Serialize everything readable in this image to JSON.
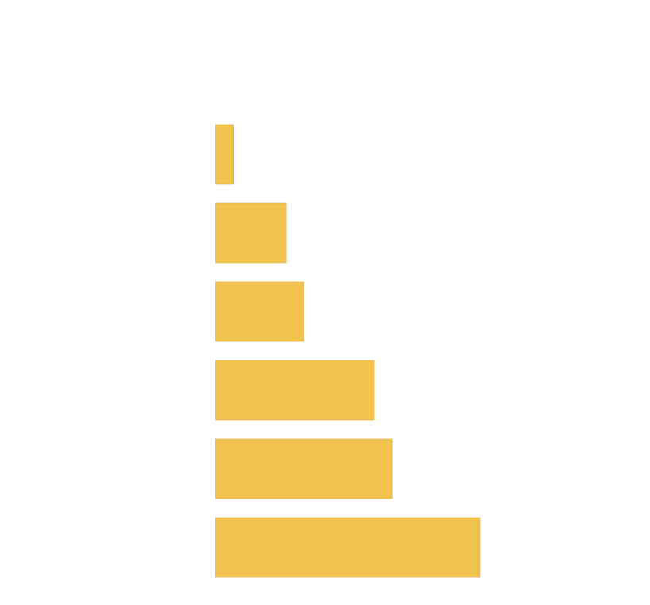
{
  "chart_data": {
    "type": "bar",
    "orientation": "horizontal",
    "values": [
      1,
      4,
      5,
      9,
      10,
      15
    ],
    "color": "#f2c44e",
    "xlim": [
      0,
      15
    ]
  }
}
